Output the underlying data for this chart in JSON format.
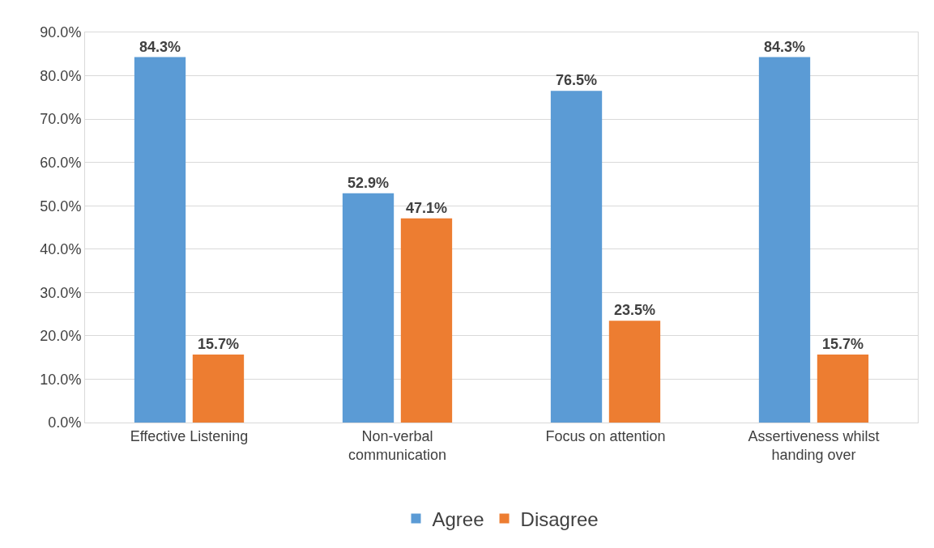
{
  "chart_data": {
    "type": "bar",
    "categories": [
      "Effective Listening",
      "Non-verbal communication",
      "Focus on attention",
      "Assertiveness whilst handing over"
    ],
    "series": [
      {
        "name": "Agree",
        "color": "#5b9bd5",
        "values": [
          84.3,
          52.9,
          76.5,
          84.3
        ],
        "value_labels": [
          "84.3%",
          "52.9%",
          "76.5%",
          "84.3%"
        ]
      },
      {
        "name": "Disagree",
        "color": "#ed7d31",
        "values": [
          15.7,
          47.1,
          23.5,
          15.7
        ],
        "value_labels": [
          "15.7%",
          "47.1%",
          "23.5%",
          "15.7%"
        ]
      }
    ],
    "ylim": [
      0,
      90
    ],
    "yticks": [
      {
        "value": 0,
        "label": "0.0%"
      },
      {
        "value": 10,
        "label": "10.0%"
      },
      {
        "value": 20,
        "label": "20.0%"
      },
      {
        "value": 30,
        "label": "30.0%"
      },
      {
        "value": 40,
        "label": "40.0%"
      },
      {
        "value": 50,
        "label": "50.0%"
      },
      {
        "value": 60,
        "label": "60.0%"
      },
      {
        "value": 70,
        "label": "70.0%"
      },
      {
        "value": 80,
        "label": "80.0%"
      },
      {
        "value": 90,
        "label": "90.0%"
      }
    ],
    "grid": "y",
    "legend": "bottom"
  }
}
